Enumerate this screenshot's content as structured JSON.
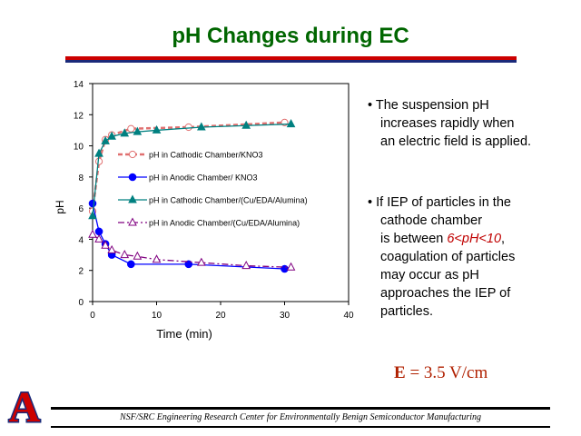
{
  "slide": {
    "title": "pH Changes during EC",
    "bullets": [
      {
        "lines": [
          "• The suspension pH",
          "increases rapidly when",
          "an electric field is applied."
        ]
      },
      {
        "lines": [
          "• If IEP of particles in the",
          "cathode chamber"
        ],
        "highlight_prefix": "is between ",
        "highlight": "6<pH<10",
        "highlight_suffix": ",",
        "tail": [
          "coagulation of particles",
          "may occur as pH",
          "approaches the IEP of",
          "particles."
        ]
      }
    ],
    "field_label": "E",
    "field_value": " = 3.5 V/cm",
    "footer": "NSF/SRC Engineering Research Center for Environmentally Benign Semiconductor Manufacturing",
    "logo_letter": "A"
  },
  "colors": {
    "title": "#006600",
    "highlight": "#c00000",
    "series_cathodic_kno3": "#e07070",
    "series_anodic_kno3": "#0000ff",
    "series_cathodic_alumina": "#008080",
    "series_anodic_alumina": "#800080"
  },
  "chart_data": {
    "type": "line",
    "xlabel": "Time (min)",
    "ylabel": "pH",
    "xlim": [
      0,
      40
    ],
    "ylim": [
      0,
      14
    ],
    "xticks": [
      "0",
      "10",
      "20",
      "30",
      "40"
    ],
    "yticks": [
      "0",
      "2",
      "4",
      "6",
      "8",
      "10",
      "12",
      "14"
    ],
    "grid": false,
    "legend_position": "center",
    "series": [
      {
        "name": "pH in Cathodic Chamber/KNO3",
        "marker": "open-circle",
        "line": "dashed",
        "x": [
          0,
          1,
          2,
          3,
          6,
          15,
          30
        ],
        "y": [
          5.8,
          9.0,
          10.4,
          10.7,
          11.1,
          11.2,
          11.5
        ]
      },
      {
        "name": "pH in Anodic Chamber/ KNO3",
        "marker": "filled-circle",
        "line": "solid",
        "x": [
          0,
          1,
          2,
          3,
          6,
          15,
          30
        ],
        "y": [
          6.3,
          4.5,
          3.7,
          3.0,
          2.4,
          2.4,
          2.1
        ]
      },
      {
        "name": "pH in Cathodic Chamber/(Cu/EDA/Alumina)",
        "marker": "filled-triangle",
        "line": "solid",
        "x": [
          0,
          1,
          2,
          3,
          5,
          7,
          10,
          17,
          24,
          31
        ],
        "y": [
          5.5,
          9.5,
          10.3,
          10.6,
          10.8,
          10.9,
          11.0,
          11.2,
          11.3,
          11.4
        ]
      },
      {
        "name": "pH in Anodic Chamber/(Cu/EDA/Alumina)",
        "marker": "open-triangle",
        "line": "dashdot",
        "x": [
          0,
          1,
          2,
          3,
          5,
          7,
          10,
          17,
          24,
          31
        ],
        "y": [
          4.3,
          4.0,
          3.6,
          3.3,
          3.0,
          2.9,
          2.7,
          2.5,
          2.3,
          2.2
        ]
      }
    ]
  }
}
